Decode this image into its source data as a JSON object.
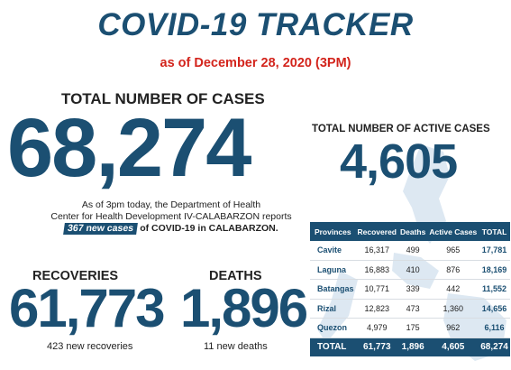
{
  "header": {
    "title": "COVID-19 TRACKER",
    "subtitle": "as of December 28, 2020 (3PM)"
  },
  "total_cases": {
    "label": "TOTAL NUMBER OF CASES",
    "value": "68,274"
  },
  "active_cases": {
    "label": "TOTAL NUMBER OF ACTIVE CASES",
    "value": "4,605"
  },
  "report": {
    "line1": "As of 3pm today, the Department of Health",
    "line2": "Center for Health Development IV-CALABARZON reports",
    "badge": "367 new cases",
    "line3_tail": "of COVID-19 in CALABARZON."
  },
  "recoveries": {
    "label": "RECOVERIES",
    "value": "61,773",
    "sub": "423 new recoveries"
  },
  "deaths": {
    "label": "DEATHS",
    "value": "1,896",
    "sub": "11 new deaths"
  },
  "table": {
    "headers": [
      "Provinces",
      "Recovered",
      "Deaths",
      "Active Cases",
      "TOTAL"
    ],
    "rows": [
      [
        "Cavite",
        "16,317",
        "499",
        "965",
        "17,781"
      ],
      [
        "Laguna",
        "16,883",
        "410",
        "876",
        "18,169"
      ],
      [
        "Batangas",
        "10,771",
        "339",
        "442",
        "11,552"
      ],
      [
        "Rizal",
        "12,823",
        "473",
        "1,360",
        "14,656"
      ],
      [
        "Quezon",
        "4,979",
        "175",
        "962",
        "6,116"
      ]
    ],
    "total_row": [
      "TOTAL",
      "61,773",
      "1,896",
      "4,605",
      "68,274"
    ]
  },
  "colors": {
    "primary": "#1b4f72",
    "accent": "#d3241c",
    "map_tint": "#dde8f2"
  }
}
